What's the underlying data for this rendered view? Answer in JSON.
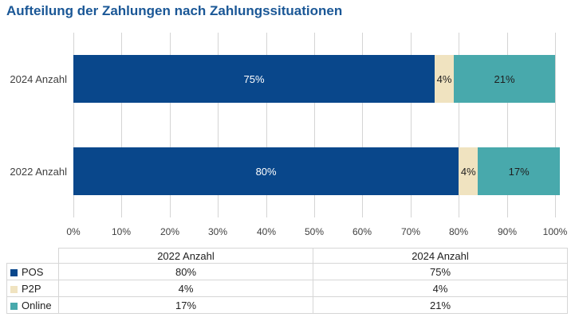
{
  "title": "Aufteilung der Zahlungen nach Zahlungssituationen",
  "colors": {
    "title": "#1A5796",
    "gridline": "#D4D4D4",
    "table_border": "#D6D6D6",
    "axis_text": "#404040"
  },
  "chart_data": {
    "type": "bar",
    "orientation": "horizontal-stacked",
    "title": "Aufteilung der Zahlungen nach Zahlungssituationen",
    "categories": [
      "2024 Anzahl",
      "2022 Anzahl"
    ],
    "series": [
      {
        "name": "POS",
        "color": "#09478B",
        "values": [
          75,
          80
        ],
        "labels": [
          "75%",
          "80%"
        ],
        "label_color": "#FFFFFF"
      },
      {
        "name": "P2P",
        "color": "#F0E3C0",
        "values": [
          4,
          4
        ],
        "labels": [
          "4%",
          "4%"
        ],
        "label_color": "#1F1F1F"
      },
      {
        "name": "Online",
        "color": "#48A9AC",
        "values": [
          21,
          17
        ],
        "labels": [
          "21%",
          "17%"
        ],
        "label_color": "#1F1F1F"
      }
    ],
    "xlim": [
      0,
      100
    ],
    "x_ticks": [
      "0%",
      "10%",
      "20%",
      "30%",
      "40%",
      "50%",
      "60%",
      "70%",
      "80%",
      "90%",
      "100%"
    ],
    "grid": "vertical",
    "legend_position": "table-below"
  },
  "table": {
    "columns": [
      "",
      "2022 Anzahl",
      "2024 Anzahl"
    ],
    "rows": [
      {
        "label": "POS",
        "swatch_color": "#09478B",
        "values": [
          "80%",
          "75%"
        ]
      },
      {
        "label": "P2P",
        "swatch_color": "#F0E3C0",
        "values": [
          "4%",
          "4%"
        ]
      },
      {
        "label": "Online",
        "swatch_color": "#48A9AC",
        "values": [
          "17%",
          "21%"
        ]
      }
    ]
  }
}
